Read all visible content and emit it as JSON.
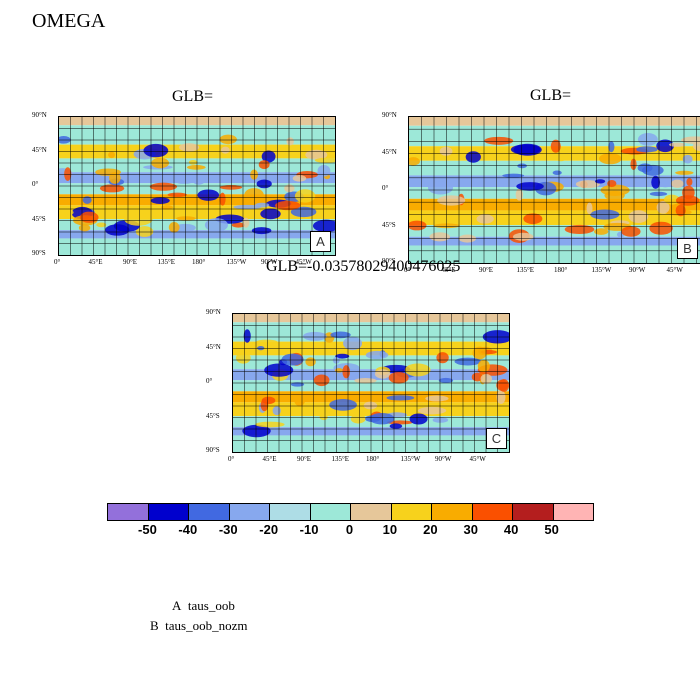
{
  "page_title": "OMEGA",
  "panels": [
    {
      "id": "A",
      "title": "GLB=",
      "label": "A"
    },
    {
      "id": "B",
      "title": "GLB=",
      "label": "B"
    },
    {
      "id": "C",
      "title": "GLB=-0.0357802940047602​5",
      "label": "C"
    }
  ],
  "axes": {
    "lat_ticks": [
      "90°N",
      "45°N",
      "0°",
      "45°S",
      "90°S"
    ],
    "lon_ticks": [
      "0°",
      "45°E",
      "90°E",
      "135°E",
      "180°",
      "135°W",
      "90°W",
      "45°W"
    ]
  },
  "colorbar": {
    "colors": [
      "#9370DB",
      "#0000CD",
      "#4169E1",
      "#87A8EE",
      "#AEDDE6",
      "#9DE8D8",
      "#E6C79A",
      "#F7D21C",
      "#F9AC00",
      "#FA5000",
      "#B41E1E",
      "#FFB4B4"
    ],
    "labels": [
      "-50",
      "-40",
      "-30",
      "-20",
      "-10",
      "0",
      "10",
      "20",
      "30",
      "40",
      "50"
    ]
  },
  "legend": [
    {
      "key": "A",
      "name": "taus_oob"
    },
    {
      "key": "B",
      "name": "taus_oob_nozm"
    }
  ]
}
